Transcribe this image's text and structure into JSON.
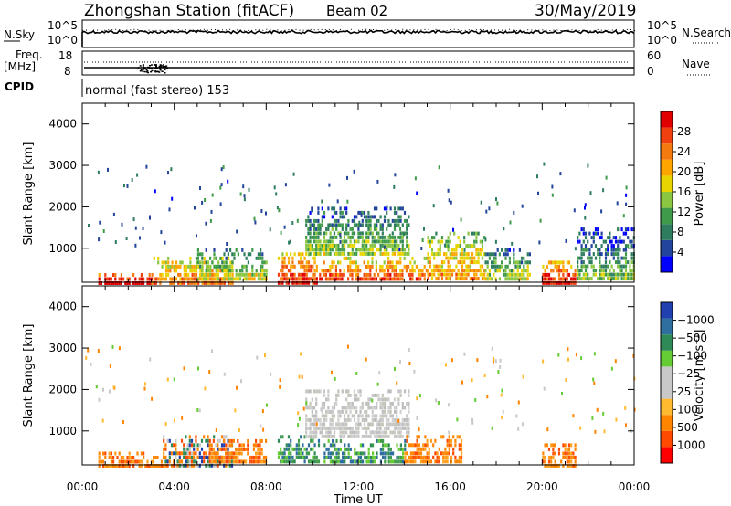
{
  "header": {
    "station": "Zhongshan Station (fitACF)",
    "beam": "Beam 02",
    "date": "30/May/2019"
  },
  "strip": {
    "nsky_label": "N.Sky",
    "nsky_ticks": [
      "10^5",
      "10^0"
    ],
    "nsearch_label": "N.Search",
    "nsearch_ticks": [
      "10^5",
      "10^0"
    ],
    "freq_label": "Freq.",
    "freq_unit": "[MHz]",
    "freq_ticks": [
      "18",
      "8"
    ],
    "nave_label": "Nave",
    "nave_ticks": [
      "60",
      "0"
    ],
    "cpid_label": "CPID",
    "cpid_value": "normal (fast stereo) 153"
  },
  "colors": {
    "power_scale": [
      "#0000ff",
      "#22449a",
      "#2e7d5e",
      "#3f9b4a",
      "#8bc641",
      "#e8d400",
      "#ffa500",
      "#f47a10",
      "#f04010",
      "#e00000"
    ],
    "velocity_scale": [
      "#ff0000",
      "#ff4a00",
      "#ff8400",
      "#ffba30",
      "#c8c8c8",
      "#c8c8c8",
      "#66cc33",
      "#2e8b57",
      "#2f6fa0",
      "#2040b0"
    ]
  },
  "chart_data": [
    {
      "type": "heatmap",
      "name": "Power panel",
      "xlabel": "",
      "ylabel": "Slant Range [km]",
      "xlim": [
        "00:00",
        "24:00"
      ],
      "ylim": [
        180,
        4500
      ],
      "yticks": [
        "1000",
        "2000",
        "3000",
        "4000"
      ],
      "colorbar": {
        "label": "Power [dB]",
        "ticks": [
          "4",
          "8",
          "12",
          "16",
          "20",
          "24",
          "28"
        ],
        "range": [
          0,
          30
        ]
      },
      "regions": [
        {
          "t": [
            0.7,
            3.0
          ],
          "r": [
            180,
            400
          ],
          "level": 26
        },
        {
          "t": [
            3.0,
            6.5
          ],
          "r": [
            200,
            800
          ],
          "level": 17
        },
        {
          "t": [
            5.0,
            8.0
          ],
          "r": [
            300,
            1000
          ],
          "level": 10
        },
        {
          "t": [
            8.5,
            10.2
          ],
          "r": [
            200,
            900
          ],
          "level": 21
        },
        {
          "t": [
            9.7,
            14.2
          ],
          "r": [
            900,
            2000
          ],
          "level": 8
        },
        {
          "t": [
            10.3,
            15.0
          ],
          "r": [
            300,
            800
          ],
          "level": 19
        },
        {
          "t": [
            15.0,
            17.5
          ],
          "r": [
            300,
            1400
          ],
          "level": 15
        },
        {
          "t": [
            17.5,
            19.5
          ],
          "r": [
            300,
            1000
          ],
          "level": 9
        },
        {
          "t": [
            20.0,
            21.4
          ],
          "r": [
            200,
            700
          ],
          "level": 22
        },
        {
          "t": [
            21.5,
            24.0
          ],
          "r": [
            300,
            1500
          ],
          "level": 6
        }
      ]
    },
    {
      "type": "heatmap",
      "name": "Velocity panel",
      "xlabel": "Time UT",
      "ylabel": "Slant Range [km]",
      "xlim": [
        "00:00",
        "24:00"
      ],
      "ylim": [
        180,
        4500
      ],
      "xticks": [
        "00:00",
        "04:00",
        "08:00",
        "12:00",
        "16:00",
        "20:00",
        "00:00"
      ],
      "yticks": [
        "1000",
        "2000",
        "3000",
        "4000"
      ],
      "colorbar": {
        "label": "Velocity [m s⁻¹]",
        "ticks": [
          "1000",
          "500",
          "100",
          "25",
          "−25",
          "−100",
          "−500",
          "−1000"
        ]
      },
      "regions": [
        {
          "t": [
            0.7,
            3.5
          ],
          "r": [
            180,
            500
          ],
          "level": "orange"
        },
        {
          "t": [
            3.5,
            6.5
          ],
          "r": [
            200,
            900
          ],
          "level": "mixed"
        },
        {
          "t": [
            5.5,
            8.0
          ],
          "r": [
            300,
            800
          ],
          "level": "orange"
        },
        {
          "t": [
            8.5,
            10.3
          ],
          "r": [
            300,
            900
          ],
          "level": "green"
        },
        {
          "t": [
            9.7,
            14.2
          ],
          "r": [
            900,
            2000
          ],
          "level": "grey"
        },
        {
          "t": [
            10.5,
            14.0
          ],
          "r": [
            300,
            800
          ],
          "level": "green"
        },
        {
          "t": [
            14.0,
            16.5
          ],
          "r": [
            300,
            900
          ],
          "level": "orange"
        },
        {
          "t": [
            20.0,
            21.4
          ],
          "r": [
            200,
            700
          ],
          "level": "orange"
        }
      ]
    }
  ]
}
